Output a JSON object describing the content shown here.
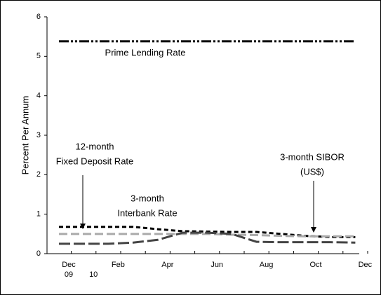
{
  "chart_data": {
    "type": "line",
    "ylabel": "Percent Per Annum",
    "categories": [
      "Dec",
      null,
      "Feb",
      null,
      "Apr",
      null,
      "Jun",
      null,
      "Aug",
      null,
      "Oct",
      null,
      "Dec"
    ],
    "year_labels": [
      "09",
      "10",
      null,
      null,
      null,
      null,
      null,
      null,
      null,
      null,
      null,
      null,
      null
    ],
    "ylim": [
      0,
      6
    ],
    "yticks": [
      0,
      1,
      2,
      3,
      4,
      5,
      6
    ],
    "series": [
      {
        "name": "Prime Lending Rate",
        "color": "#000000",
        "dash": "14,3,3,3,3,3",
        "values": [
          5.38,
          5.38,
          5.38,
          5.38,
          5.38,
          5.38,
          5.38,
          5.38,
          5.38,
          5.38,
          5.38,
          5.38,
          5.38
        ]
      },
      {
        "name": "12-month Fixed Deposit Rate",
        "color": "#000000",
        "dash": "6,4",
        "values": [
          0.68,
          0.68,
          0.68,
          0.68,
          0.62,
          0.57,
          0.56,
          0.55,
          0.55,
          0.5,
          0.45,
          0.42,
          0.42
        ]
      },
      {
        "name": "3-month Interbank Rate",
        "color": "#aaaaaa",
        "dash": "12,5",
        "values": [
          0.5,
          0.5,
          0.5,
          0.5,
          0.5,
          0.5,
          0.5,
          0.48,
          0.47,
          0.45,
          0.44,
          0.44,
          0.44
        ]
      },
      {
        "name": "3-month SIBOR (US$)",
        "color": "#444444",
        "dash": "16,5",
        "values": [
          0.25,
          0.25,
          0.25,
          0.28,
          0.35,
          0.53,
          0.53,
          0.5,
          0.3,
          0.29,
          0.29,
          0.29,
          0.28
        ]
      }
    ],
    "annotations": [
      {
        "lines": [
          "Prime Lending Rate"
        ]
      },
      {
        "lines": [
          "12-month",
          "Fixed Deposit Rate"
        ]
      },
      {
        "lines": [
          "3-month",
          "Interbank Rate"
        ]
      },
      {
        "lines": [
          "3-month SIBOR",
          "(US$)"
        ]
      }
    ]
  }
}
